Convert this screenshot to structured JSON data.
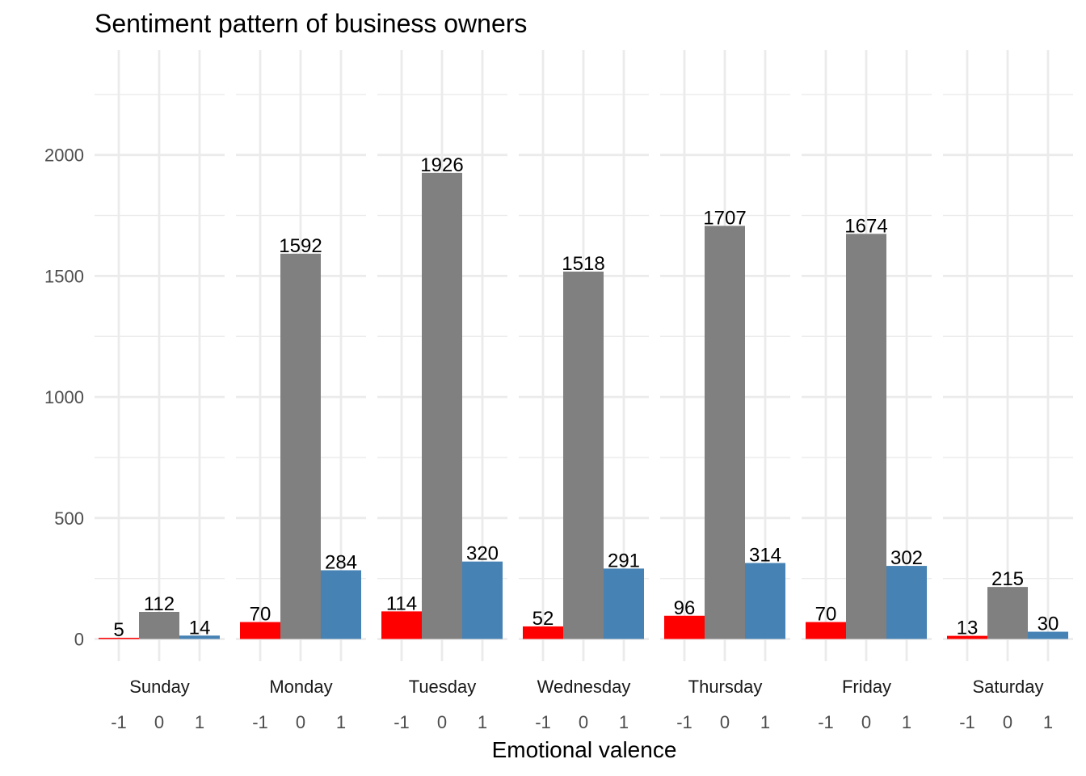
{
  "chart_data": {
    "type": "bar",
    "title": "Sentiment pattern of business owners",
    "xlabel": "Emotional valence",
    "ylabel": "",
    "ylim": [
      -100,
      2300
    ],
    "yticks": [
      0,
      500,
      1000,
      1500,
      2000
    ],
    "grid": true,
    "legend": "none",
    "facets": [
      "Sunday",
      "Monday",
      "Tuesday",
      "Wednesday",
      "Thursday",
      "Friday",
      "Saturday"
    ],
    "categories": [
      "-1",
      "0",
      "1"
    ],
    "colors": {
      "-1": "#ff0000",
      "0": "#808080",
      "1": "#4682b4"
    },
    "series": [
      {
        "facet": "Sunday",
        "values": [
          5,
          112,
          14
        ]
      },
      {
        "facet": "Monday",
        "values": [
          70,
          1592,
          284
        ]
      },
      {
        "facet": "Tuesday",
        "values": [
          114,
          1926,
          320
        ]
      },
      {
        "facet": "Wednesday",
        "values": [
          52,
          1518,
          291
        ]
      },
      {
        "facet": "Thursday",
        "values": [
          96,
          1707,
          314
        ]
      },
      {
        "facet": "Friday",
        "values": [
          70,
          1674,
          302
        ]
      },
      {
        "facet": "Saturday",
        "values": [
          13,
          215,
          30
        ]
      }
    ]
  }
}
